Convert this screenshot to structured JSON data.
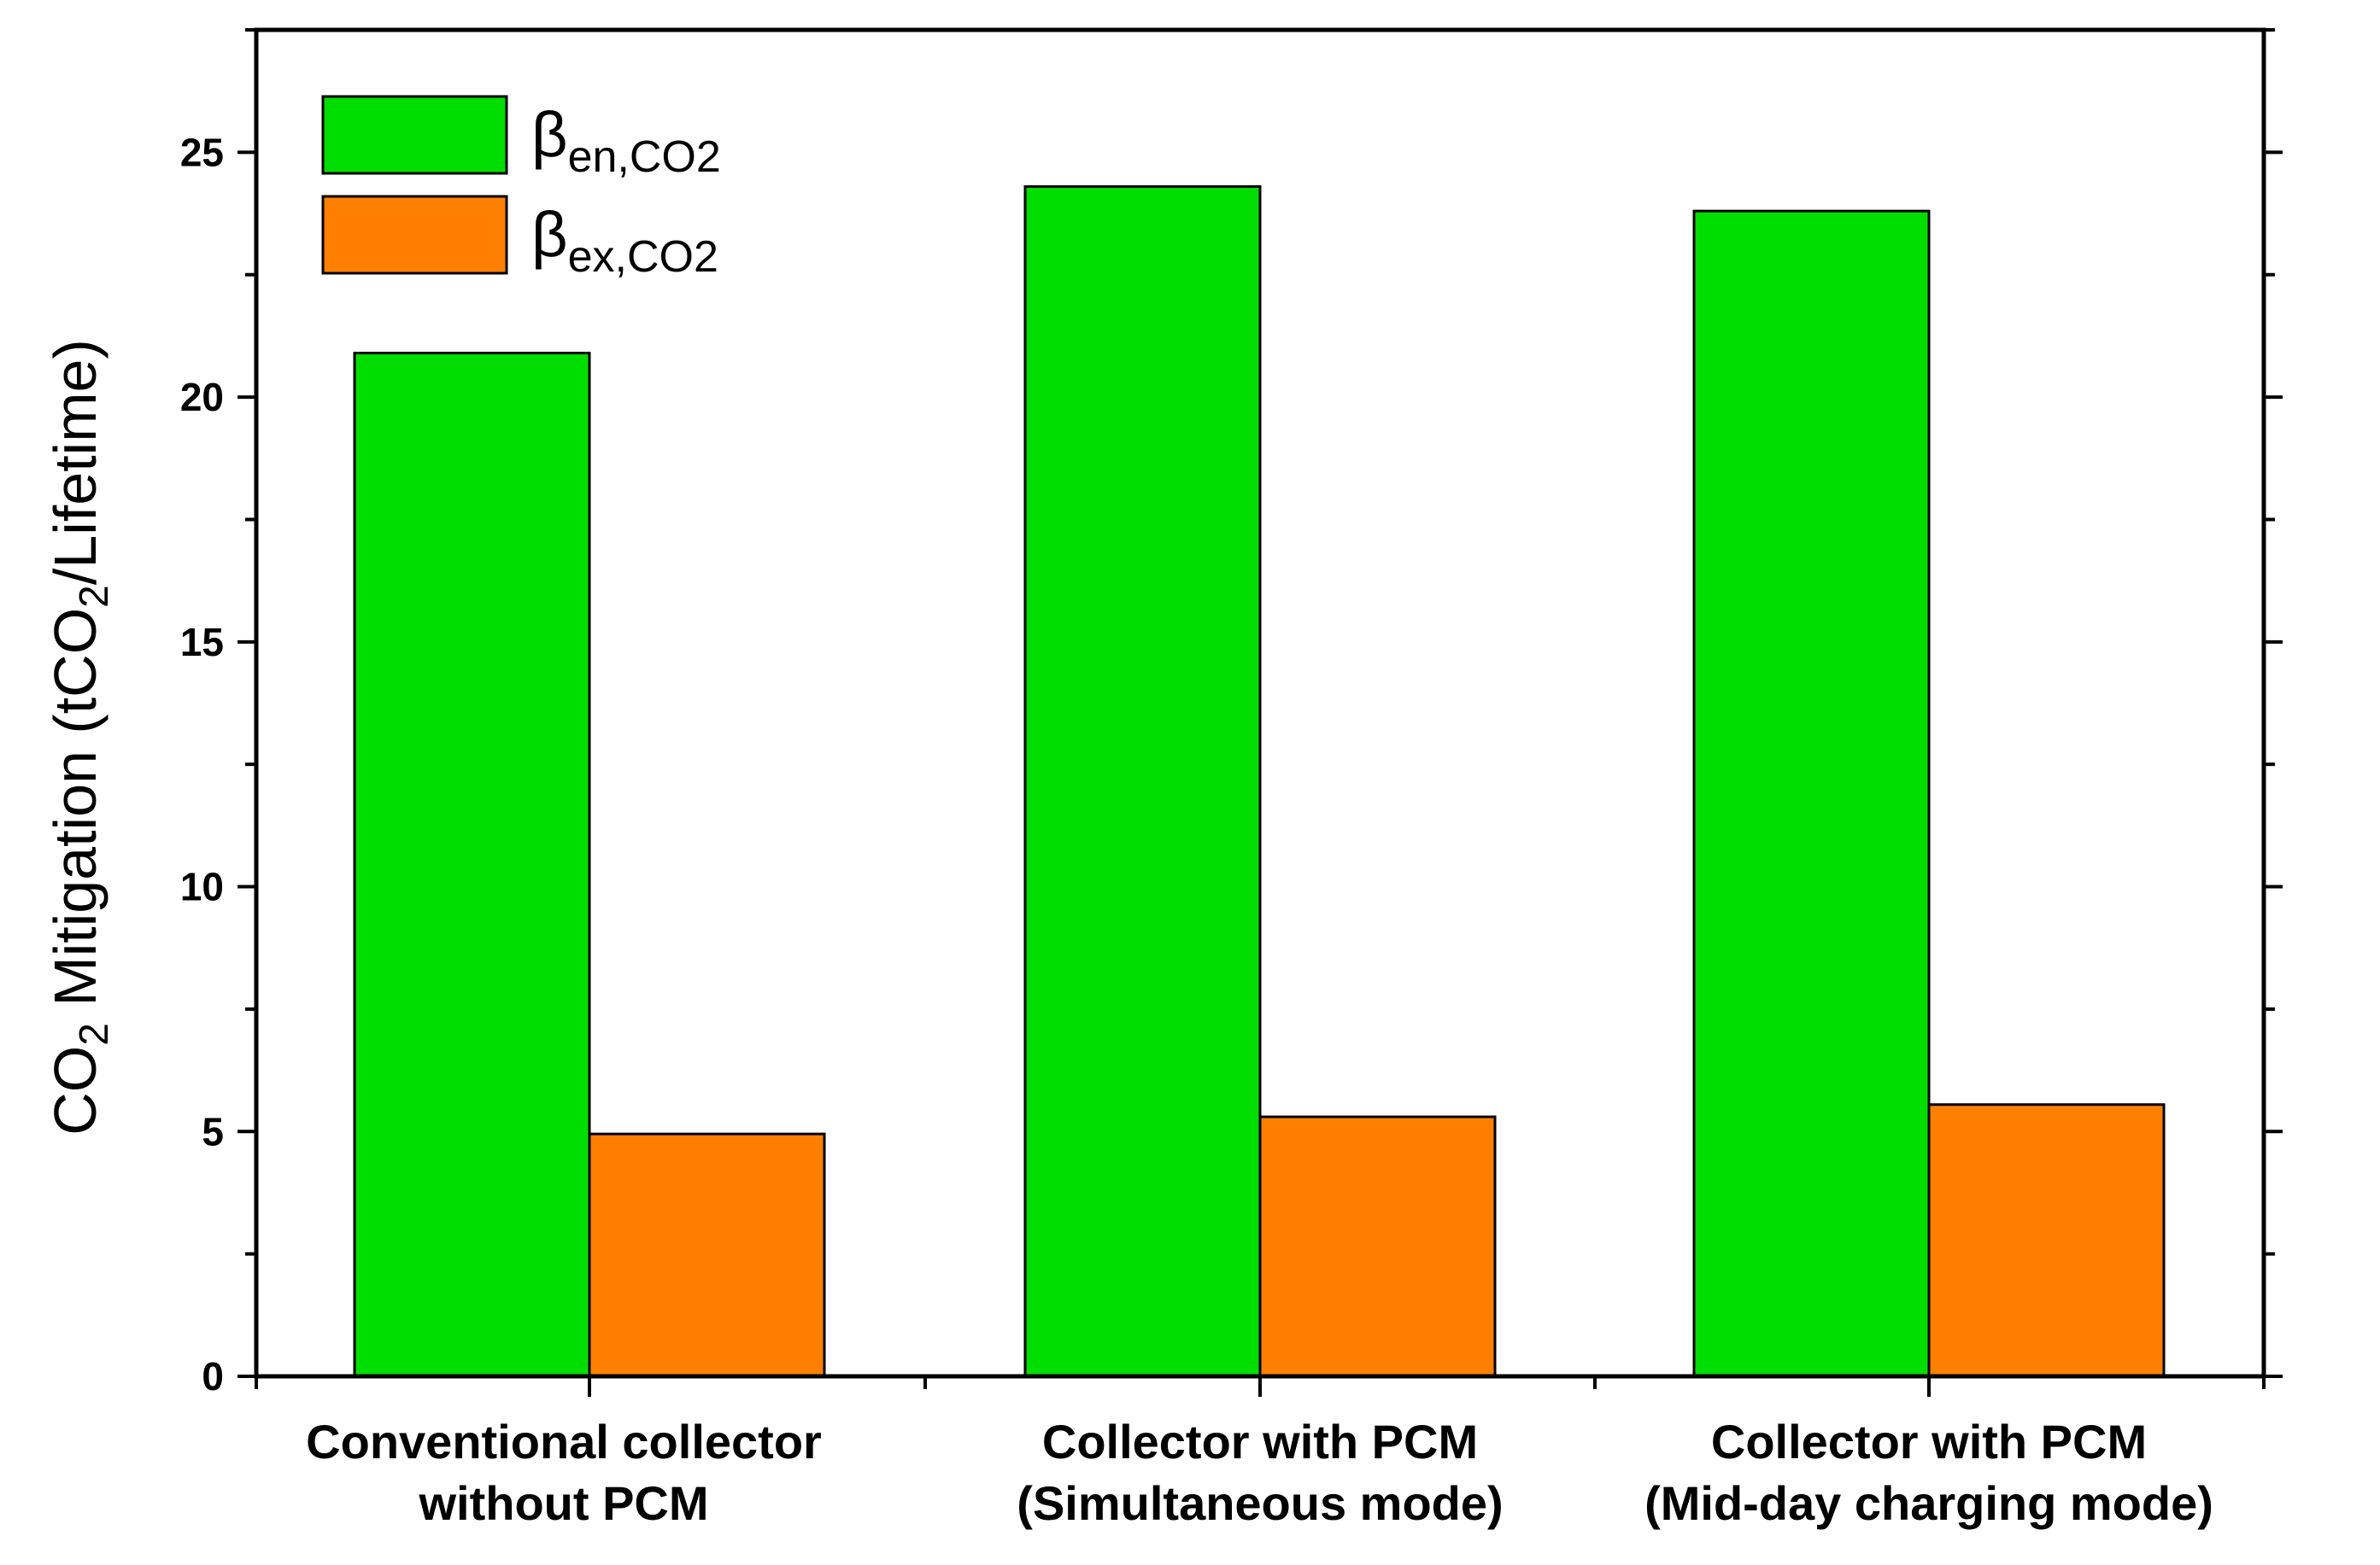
{
  "chart_data": {
    "type": "bar",
    "categories": [
      [
        "Conventional collector",
        "without PCM"
      ],
      [
        "Collector with PCM",
        "(Simultaneous mode)"
      ],
      [
        "Collector with PCM",
        "(Mid-day charging mode)"
      ]
    ],
    "series": [
      {
        "name": "β",
        "subscript": "en,CO2",
        "color": "#00dd00",
        "values": [
          20.9,
          24.3,
          23.8
        ]
      },
      {
        "name": "β",
        "subscript": "ex,CO2",
        "color": "#ff8000",
        "values": [
          4.95,
          5.3,
          5.55
        ]
      }
    ],
    "title": "",
    "xlabel": "",
    "ylabel": {
      "prefix": "CO",
      "sub1": "2",
      "middle": " Mitigation (tCO",
      "sub2": "2",
      "suffix": "/Lifetime)"
    },
    "ylim": [
      0,
      27.5
    ],
    "yticks": [
      0,
      5,
      10,
      15,
      20,
      25
    ],
    "legend_position": "top-left"
  }
}
